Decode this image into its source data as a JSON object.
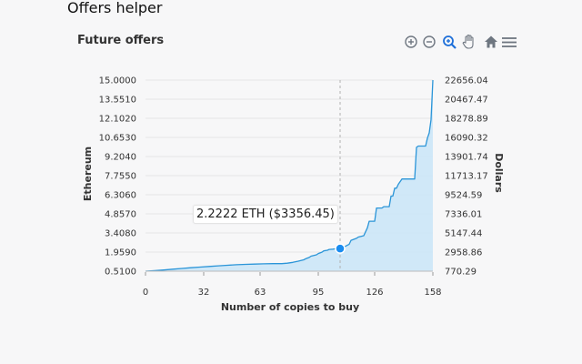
{
  "header": {
    "title": "Offers helper"
  },
  "chart_title": "Future offers",
  "toolbar": {
    "icons": [
      "zoom-in-icon",
      "zoom-out-icon",
      "selection-zoom-icon",
      "pan-hand-icon",
      "reset-home-icon",
      "menu-icon"
    ],
    "accent": "#1e6fd9",
    "icon_color": "#6e7680"
  },
  "tooltip": {
    "text": "2.2222 ETH ($3356.45)"
  },
  "colors": {
    "line": "#2b95d8",
    "fill": "#c9e5f8",
    "marker": "#1a8cf0",
    "grid": "#e6e6e6",
    "crosshair": "#b0b0b0"
  },
  "chart_data": {
    "type": "area",
    "title": "Future offers",
    "xlabel": "Number of copies to buy",
    "ylabel_left": "Ethereum",
    "ylabel_right": "Dollars",
    "xlim": [
      0,
      158
    ],
    "ylim": [
      0.51,
      15.0
    ],
    "x_ticks": [
      "0",
      "32",
      "63",
      "95",
      "126",
      "158"
    ],
    "x_tick_values": [
      0,
      32,
      63,
      95,
      126,
      158
    ],
    "y_ticks_left": [
      "15.0000",
      "13.5510",
      "12.1020",
      "10.6530",
      "9.2040",
      "7.7550",
      "6.3060",
      "4.8570",
      "3.4080",
      "1.9590",
      "0.5100"
    ],
    "y_ticks_right": [
      "22656.04",
      "20467.47",
      "18278.89",
      "16090.32",
      "13901.74",
      "11713.17",
      "9524.59",
      "7336.01",
      "5147.44",
      "2958.86",
      "770.29"
    ],
    "grid": true,
    "highlight": {
      "x": 107,
      "y": 2.2222,
      "dollars": 3356.45
    },
    "series": [
      {
        "x": [
          0,
          5,
          10,
          15,
          20,
          25,
          30,
          35,
          40,
          45,
          50,
          55,
          60,
          65,
          70,
          75,
          78,
          81,
          84,
          87,
          88,
          90,
          91,
          94,
          95,
          97,
          98,
          100,
          101,
          103,
          104,
          107,
          108,
          110,
          111,
          112,
          113,
          116,
          117,
          120,
          121,
          122,
          123,
          126,
          127,
          130,
          131,
          134,
          135,
          136,
          137,
          138,
          139,
          140,
          141,
          148,
          149,
          150,
          154,
          155,
          156,
          157,
          158
        ],
        "y": [
          0.51,
          0.55,
          0.6,
          0.66,
          0.72,
          0.77,
          0.82,
          0.87,
          0.92,
          0.96,
          1.0,
          1.03,
          1.05,
          1.07,
          1.08,
          1.08,
          1.12,
          1.18,
          1.27,
          1.37,
          1.45,
          1.55,
          1.65,
          1.75,
          1.85,
          1.95,
          2.05,
          2.1,
          2.16,
          2.18,
          2.2,
          2.2222,
          2.3,
          2.4,
          2.48,
          2.55,
          2.85,
          3.0,
          3.1,
          3.2,
          3.5,
          3.8,
          4.3,
          4.3,
          5.3,
          5.3,
          5.4,
          5.4,
          6.2,
          6.2,
          6.8,
          6.8,
          7.1,
          7.3,
          7.5,
          7.5,
          9.9,
          10.0,
          10.0,
          10.6,
          11.0,
          12.0,
          15.0
        ]
      }
    ]
  }
}
